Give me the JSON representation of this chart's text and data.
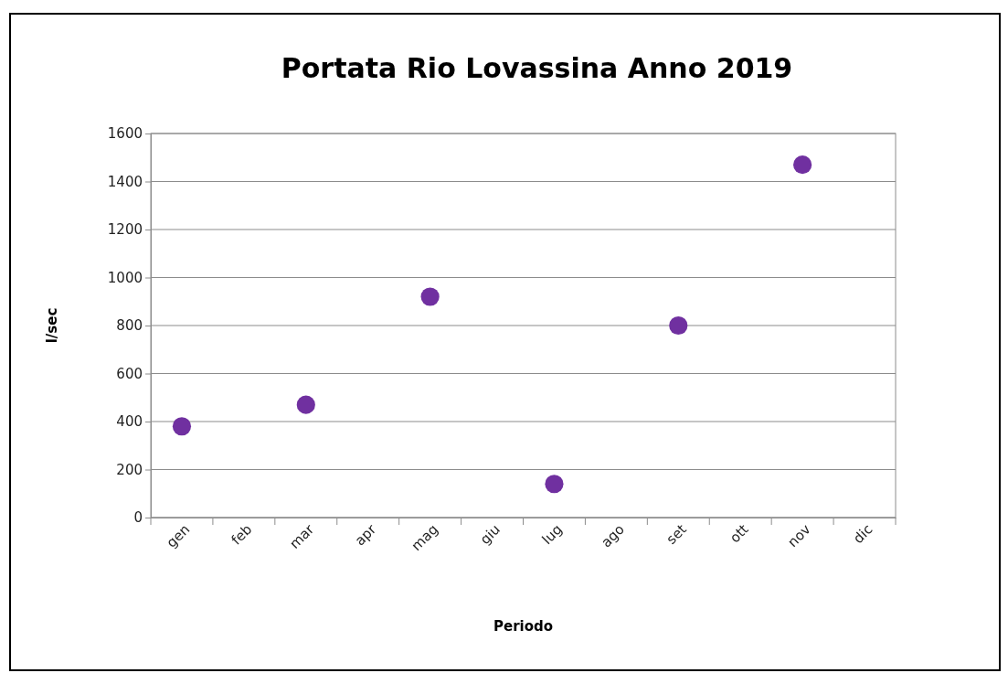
{
  "chart_data": {
    "type": "scatter",
    "title": "Portata Rio Lovassina Anno 2019",
    "xlabel": "Periodo",
    "ylabel": "l/sec",
    "categories": [
      "gen",
      "feb",
      "mar",
      "apr",
      "mag",
      "giu",
      "lug",
      "ago",
      "set",
      "ott",
      "nov",
      "dic"
    ],
    "series": [
      {
        "color": "#7030a0",
        "values": [
          380,
          null,
          470,
          null,
          920,
          null,
          140,
          null,
          800,
          null,
          1470,
          null
        ]
      }
    ],
    "ylim": [
      0,
      1600
    ],
    "yticks": [
      0,
      200,
      400,
      600,
      800,
      1000,
      1200,
      1400,
      1600
    ],
    "grid": "y",
    "legend": false,
    "marker": "circle"
  }
}
